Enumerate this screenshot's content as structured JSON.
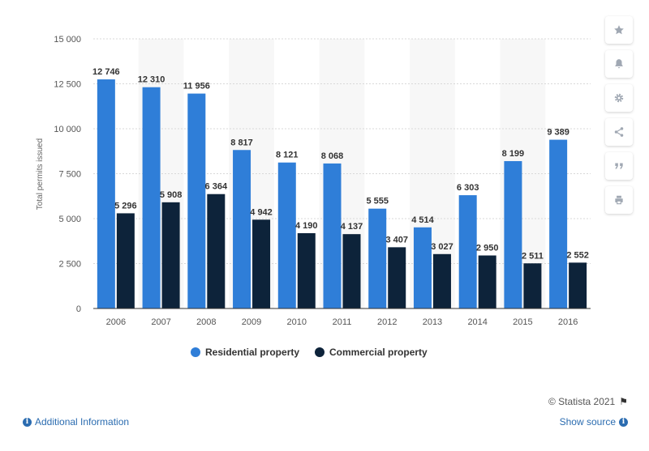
{
  "chart_data": {
    "type": "bar",
    "ylabel": "Total permits issued",
    "ylim": [
      0,
      15000
    ],
    "yticks": [
      "0",
      "2 500",
      "5 000",
      "7 500",
      "10 000",
      "12 500",
      "15 000"
    ],
    "ytick_values": [
      0,
      2500,
      5000,
      7500,
      10000,
      12500,
      15000
    ],
    "grid": true,
    "legend_position": "bottom",
    "categories": [
      "2006",
      "2007",
      "2008",
      "2009",
      "2010",
      "2011",
      "2012",
      "2013",
      "2014",
      "2015",
      "2016"
    ],
    "series": [
      {
        "name": "Residential property",
        "color": "#2f7ed8",
        "values": [
          12746,
          12310,
          11956,
          8817,
          8121,
          8068,
          5555,
          4514,
          6303,
          8199,
          9389
        ],
        "labels": [
          "12 746",
          "12 310",
          "11 956",
          "8 817",
          "8 121",
          "8 068",
          "5 555",
          "4 514",
          "6 303",
          "8 199",
          "9 389"
        ]
      },
      {
        "name": "Commercial property",
        "color": "#0d233a",
        "values": [
          5296,
          5908,
          6364,
          4942,
          4190,
          4137,
          3407,
          3027,
          2950,
          2511,
          2552
        ],
        "labels": [
          "5 296",
          "5 908",
          "6 364",
          "4 942",
          "4 190",
          "4 137",
          "3 407",
          "3 027",
          "2 950",
          "2 511",
          "2 552"
        ]
      }
    ]
  },
  "toolbar": {
    "icons": [
      "star-icon",
      "bell-icon",
      "gear-icon",
      "share-icon",
      "quote-icon",
      "print-icon"
    ]
  },
  "footer": {
    "copyright": "© Statista 2021",
    "additional_info": "Additional Information",
    "show_source": "Show source"
  }
}
